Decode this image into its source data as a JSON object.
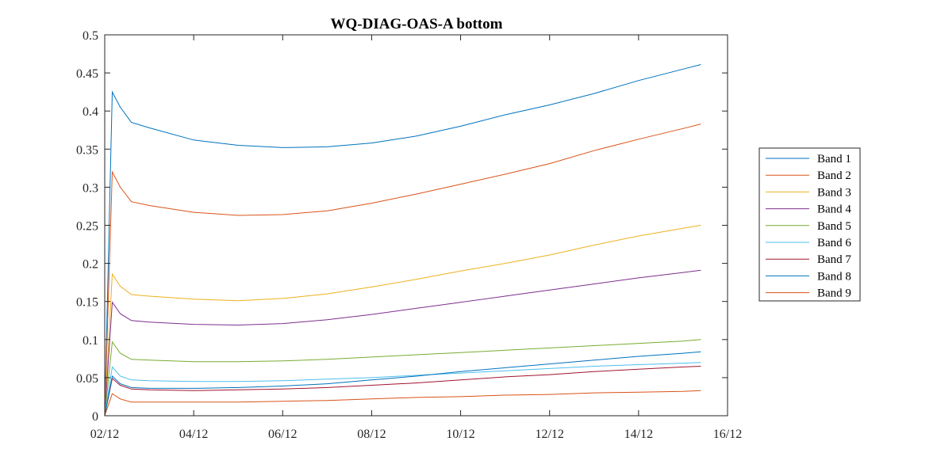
{
  "chart_data": {
    "type": "line",
    "title": "WQ-DIAG-OAS-A bottom",
    "xlabel": "",
    "ylabel": "",
    "x_unit": "days",
    "xlim": [
      2,
      16
    ],
    "ylim": [
      0,
      0.5
    ],
    "x_ticks": [
      2,
      4,
      6,
      8,
      10,
      12,
      14,
      16
    ],
    "x_tick_labels": [
      "02/12",
      "04/12",
      "06/12",
      "08/12",
      "10/12",
      "12/12",
      "14/12",
      "16/12"
    ],
    "y_ticks": [
      0,
      0.05,
      0.1,
      0.15,
      0.2,
      0.25,
      0.3,
      0.35,
      0.4,
      0.45,
      0.5
    ],
    "y_tick_labels": [
      "0",
      "0.05",
      "0.1",
      "0.15",
      "0.2",
      "0.25",
      "0.3",
      "0.35",
      "0.4",
      "0.45",
      "0.5"
    ],
    "grid": false,
    "legend_position": "right",
    "x": [
      2.0,
      2.17,
      2.35,
      2.6,
      3.0,
      4.0,
      5.0,
      6.0,
      7.0,
      8.0,
      9.0,
      10.0,
      11.0,
      12.0,
      13.0,
      14.0,
      15.0,
      15.4
    ],
    "series": [
      {
        "name": "Band 1",
        "color": "#0072BD",
        "values": [
          0.0,
          0.425,
          0.405,
          0.385,
          0.378,
          0.362,
          0.355,
          0.352,
          0.353,
          0.358,
          0.367,
          0.38,
          0.395,
          0.408,
          0.423,
          0.44,
          0.455,
          0.461
        ]
      },
      {
        "name": "Band 2",
        "color": "#D95319",
        "values": [
          0.0,
          0.32,
          0.3,
          0.281,
          0.276,
          0.267,
          0.263,
          0.264,
          0.269,
          0.279,
          0.291,
          0.304,
          0.317,
          0.331,
          0.348,
          0.363,
          0.377,
          0.383
        ]
      },
      {
        "name": "Band 3",
        "color": "#EDB120",
        "values": [
          0.0,
          0.186,
          0.17,
          0.159,
          0.157,
          0.153,
          0.151,
          0.154,
          0.16,
          0.169,
          0.179,
          0.19,
          0.2,
          0.211,
          0.224,
          0.236,
          0.246,
          0.25
        ]
      },
      {
        "name": "Band 4",
        "color": "#7E2F8E",
        "values": [
          0.0,
          0.149,
          0.134,
          0.125,
          0.123,
          0.12,
          0.119,
          0.121,
          0.126,
          0.133,
          0.141,
          0.149,
          0.157,
          0.165,
          0.173,
          0.181,
          0.188,
          0.191
        ]
      },
      {
        "name": "Band 5",
        "color": "#77AC30",
        "values": [
          0.0,
          0.097,
          0.082,
          0.074,
          0.073,
          0.071,
          0.071,
          0.072,
          0.074,
          0.077,
          0.08,
          0.083,
          0.086,
          0.089,
          0.092,
          0.095,
          0.098,
          0.1
        ]
      },
      {
        "name": "Band 6",
        "color": "#4DBEEE",
        "values": [
          0.0,
          0.064,
          0.052,
          0.047,
          0.046,
          0.045,
          0.045,
          0.046,
          0.048,
          0.05,
          0.053,
          0.056,
          0.059,
          0.062,
          0.065,
          0.067,
          0.069,
          0.07
        ]
      },
      {
        "name": "Band 7",
        "color": "#A2142F",
        "values": [
          0.0,
          0.049,
          0.04,
          0.035,
          0.034,
          0.033,
          0.034,
          0.035,
          0.037,
          0.04,
          0.043,
          0.047,
          0.051,
          0.054,
          0.058,
          0.061,
          0.064,
          0.065
        ]
      },
      {
        "name": "Band 8",
        "color": "#0072BD",
        "values": [
          0.0,
          0.052,
          0.042,
          0.037,
          0.036,
          0.036,
          0.037,
          0.039,
          0.042,
          0.047,
          0.052,
          0.058,
          0.063,
          0.068,
          0.073,
          0.078,
          0.082,
          0.084
        ]
      },
      {
        "name": "Band 9",
        "color": "#D95319",
        "values": [
          0.0,
          0.029,
          0.022,
          0.018,
          0.018,
          0.018,
          0.018,
          0.019,
          0.02,
          0.022,
          0.024,
          0.025,
          0.027,
          0.028,
          0.03,
          0.031,
          0.032,
          0.033
        ]
      }
    ]
  }
}
